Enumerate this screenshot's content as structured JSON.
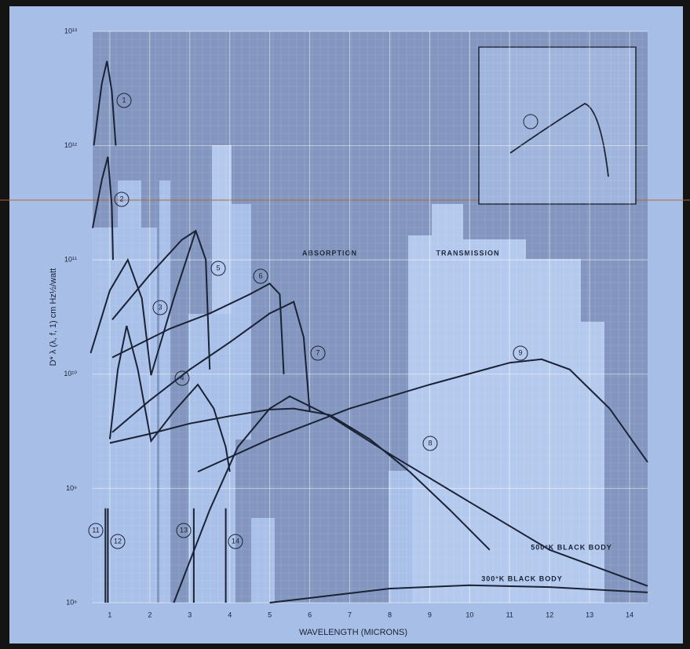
{
  "chart_data": {
    "type": "line",
    "x_label": "WAVELENGTH (MICRONS)",
    "y_label": "D* λ (λ, f, 1) cm Hz½/watt",
    "annotations": [
      "ABSORPTION",
      "TRANSMISSION"
    ],
    "log_scale_y": true,
    "grid": true,
    "xlim": [
      0.57,
      14.45
    ],
    "xticks": [
      1,
      2,
      3,
      4,
      5,
      6,
      7,
      8,
      9,
      10,
      11,
      12,
      13,
      14
    ],
    "ylim": [
      100000000,
      10000000000000
    ],
    "yticks": [
      {
        "value": 100000000,
        "label": "10⁸"
      },
      {
        "value": 1000000000,
        "label": "10⁹"
      },
      {
        "value": 10000000000,
        "label": "10¹⁰"
      },
      {
        "value": 100000000000,
        "label": "10¹¹"
      },
      {
        "value": 1000000000000,
        "label": "10¹²"
      },
      {
        "value": 10000000000000,
        "label": "10¹³"
      }
    ],
    "series": [
      {
        "name": "1",
        "color": "#1a2236",
        "x": [
          0.6,
          0.8,
          0.93,
          1.05,
          1.15
        ],
        "values": [
          1000000000000,
          3500000000000,
          5500000000000,
          3000000000000,
          1000000000000
        ]
      },
      {
        "name": "2",
        "color": "#1a2236",
        "x": [
          0.57,
          0.8,
          0.95,
          1.05,
          1.08
        ],
        "values": [
          190000000000,
          500000000000,
          800000000000,
          300000000000,
          100000000000
        ]
      },
      {
        "name": "3",
        "color": "#1a2236",
        "x": [
          0.52,
          1.0,
          1.45,
          1.8,
          2.03,
          2.6,
          3.15
        ],
        "values": [
          15300000000,
          54000000000,
          100000000000,
          46000000000,
          9800000000,
          46000000000,
          180000000000
        ]
      },
      {
        "name": "4",
        "color": "#1a2236",
        "x": [
          1.0,
          1.2,
          1.42,
          1.7,
          2.03,
          2.6,
          3.2,
          3.6,
          3.9,
          4.0
        ],
        "values": [
          2700000000,
          11000000000,
          26500000000,
          11000000000,
          2600000000,
          4700000000,
          8100000000,
          5000000000,
          2300000000,
          1400000000
        ]
      },
      {
        "name": "5",
        "color": "#1a2236",
        "x": [
          1.06,
          2.0,
          2.8,
          3.15,
          3.4,
          3.5
        ],
        "values": [
          30000000000,
          74000000000,
          150000000000,
          180000000000,
          100000000000,
          11000000000
        ]
      },
      {
        "name": "6",
        "color": "#1a2236",
        "x": [
          1.06,
          2.5,
          3.5,
          4.5,
          5.0,
          5.25,
          5.35
        ],
        "values": [
          14000000000,
          25000000000,
          34000000000,
          50000000000,
          62000000000,
          50000000000,
          10000000000
        ]
      },
      {
        "name": "7",
        "color": "#1a2236",
        "x": [
          1.06,
          2,
          3,
          4,
          5,
          5.6,
          5.85,
          6.0
        ],
        "values": [
          3100000000,
          5900000000,
          11000000000,
          19000000000,
          34000000000,
          43000000000,
          21000000000,
          4700000000
        ]
      },
      {
        "name": "8",
        "color": "#1a2236",
        "x": [
          1.0,
          2,
          3,
          4,
          5,
          5.6,
          6.5,
          7.5,
          8.5,
          9.5,
          10.5
        ],
        "values": [
          2500000000,
          3000000000,
          3700000000,
          4300000000,
          4900000000,
          5000000000,
          4400000000,
          2700000000,
          1400000000,
          650000000,
          290000000
        ]
      },
      {
        "name": "9",
        "color": "#1a2236",
        "x": [
          3.2,
          5,
          7,
          9,
          11,
          11.8,
          12.5,
          13.5,
          14.45
        ],
        "values": [
          1400000000,
          2700000000,
          5000000000,
          8100000000,
          12600000000,
          13500000000,
          11000000000,
          5000000000,
          1700000000
        ]
      },
      {
        "name": "11",
        "color": "#1a2236",
        "x": [
          0.89,
          0.89
        ],
        "values": [
          100000000,
          670000000
        ]
      },
      {
        "name": "12",
        "color": "#1a2236",
        "x": [
          0.95,
          0.95
        ],
        "values": [
          100000000,
          670000000
        ]
      },
      {
        "name": "13",
        "color": "#1a2236",
        "x": [
          3.1,
          3.1
        ],
        "values": [
          100000000,
          670000000
        ]
      },
      {
        "name": "14",
        "color": "#1a2236",
        "x": [
          3.9,
          3.9
        ],
        "values": [
          100000000,
          670000000
        ]
      },
      {
        "name": "500°K BLACK BODY",
        "color": "#1a2236",
        "x": [
          2.6,
          3.5,
          4.2,
          5.0,
          5.5,
          6.5,
          8,
          10,
          12,
          14.45
        ],
        "values": [
          100000000,
          650000000,
          2300000000,
          5000000000,
          6400000000,
          4300000000,
          2000000000,
          760000000,
          290000000,
          140000000
        ]
      },
      {
        "name": "300°K BLACK BODY",
        "color": "#1a2236",
        "x": [
          5,
          6,
          8,
          10,
          12,
          14.45
        ],
        "values": [
          100000000,
          110000000,
          133000000,
          142000000,
          137000000,
          123000000
        ]
      }
    ]
  }
}
